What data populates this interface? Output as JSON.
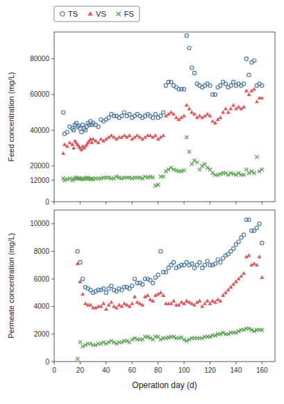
{
  "chart_data": [
    {
      "type": "scatter",
      "ylabel": "Feed concentration (mg/L)",
      "xlim": [
        0,
        170
      ],
      "xticks": [
        0,
        20,
        40,
        60,
        80,
        100,
        120,
        140,
        160
      ],
      "ylim": [
        0,
        95000
      ],
      "yticks": [
        0,
        12000,
        20000,
        40000,
        60000,
        80000
      ],
      "tick_labels": "y",
      "legend": "upper left",
      "series": [
        {
          "name": "TS",
          "marker": "circle",
          "color": "#4e79a7",
          "x": [
            7,
            8,
            10,
            12,
            14,
            15,
            16,
            17,
            18,
            19,
            20,
            21,
            22,
            23,
            24,
            25,
            26,
            27,
            28,
            29,
            30,
            32,
            34,
            36,
            38,
            40,
            42,
            44,
            46,
            48,
            50,
            52,
            54,
            56,
            58,
            60,
            62,
            64,
            66,
            68,
            70,
            72,
            74,
            76,
            78,
            80,
            82,
            84,
            86,
            88,
            90,
            92,
            94,
            96,
            98,
            100,
            102,
            104,
            106,
            108,
            110,
            112,
            114,
            116,
            118,
            120,
            122,
            124,
            126,
            128,
            130,
            132,
            134,
            136,
            138,
            140,
            142,
            144,
            146,
            148,
            150,
            152,
            154,
            156,
            158,
            160
          ],
          "values": [
            50000,
            38000,
            39000,
            42000,
            41000,
            40000,
            43000,
            44000,
            42000,
            42500,
            41000,
            39000,
            43000,
            41000,
            40000,
            42000,
            44000,
            43000,
            45000,
            43000,
            44000,
            43000,
            42000,
            46000,
            45000,
            46000,
            47000,
            49000,
            48000,
            48000,
            47000,
            48000,
            50000,
            48000,
            49000,
            47000,
            48000,
            49000,
            48000,
            47000,
            48000,
            49000,
            48000,
            47000,
            49000,
            47000,
            48000,
            50000,
            65000,
            67000,
            67000,
            65000,
            64000,
            63000,
            63000,
            63000,
            93000,
            86000,
            75000,
            72000,
            66000,
            65000,
            64000,
            65000,
            66000,
            65000,
            60000,
            60000,
            64000,
            65000,
            67000,
            66000,
            64000,
            65000,
            67000,
            65000,
            66000,
            65000,
            66000,
            80000,
            71000,
            78000,
            79000,
            65000,
            66000,
            65000
          ]
        },
        {
          "name": "VS",
          "marker": "triangle",
          "color": "#e15759",
          "x": [
            7,
            8,
            10,
            12,
            14,
            15,
            16,
            17,
            18,
            19,
            20,
            21,
            22,
            23,
            24,
            25,
            26,
            27,
            28,
            29,
            30,
            32,
            34,
            36,
            38,
            40,
            42,
            44,
            46,
            48,
            50,
            52,
            54,
            56,
            58,
            60,
            62,
            64,
            66,
            68,
            70,
            72,
            74,
            76,
            78,
            80,
            82,
            84,
            86,
            88,
            90,
            92,
            94,
            96,
            98,
            100,
            102,
            104,
            106,
            108,
            110,
            112,
            114,
            116,
            118,
            120,
            122,
            124,
            126,
            128,
            130,
            132,
            134,
            136,
            138,
            140,
            142,
            144,
            146,
            148,
            150,
            152,
            154,
            156,
            158,
            160
          ],
          "values": [
            27000,
            32000,
            31000,
            33000,
            32000,
            30000,
            34000,
            33000,
            32000,
            31000,
            30000,
            29000,
            31000,
            30000,
            31000,
            32000,
            33000,
            34000,
            35000,
            33000,
            35000,
            34000,
            33000,
            35000,
            34000,
            35000,
            36000,
            37000,
            36000,
            35000,
            36000,
            36000,
            37000,
            36000,
            37000,
            35000,
            36000,
            37000,
            36000,
            35000,
            36000,
            37000,
            37000,
            36000,
            37000,
            35000,
            36000,
            37000,
            48000,
            49000,
            50000,
            49000,
            47000,
            46000,
            47000,
            48000,
            54000,
            52000,
            50000,
            49000,
            47000,
            48000,
            47000,
            48000,
            49000,
            48000,
            45000,
            44000,
            46000,
            47000,
            50000,
            52000,
            50000,
            52000,
            54000,
            52000,
            53000,
            52000,
            53000,
            62000,
            60000,
            62000,
            63000,
            56000,
            58000,
            58000
          ]
        },
        {
          "name": "FS",
          "marker": "x",
          "color": "#59a14f",
          "x": [
            7,
            8,
            10,
            12,
            14,
            15,
            16,
            17,
            18,
            19,
            20,
            21,
            22,
            23,
            24,
            25,
            26,
            27,
            28,
            29,
            30,
            32,
            34,
            36,
            38,
            40,
            42,
            44,
            46,
            48,
            50,
            52,
            54,
            56,
            58,
            60,
            62,
            64,
            66,
            68,
            70,
            72,
            74,
            76,
            78,
            80,
            82,
            84,
            86,
            88,
            90,
            92,
            94,
            96,
            98,
            100,
            102,
            104,
            106,
            108,
            110,
            112,
            114,
            116,
            118,
            120,
            122,
            124,
            126,
            128,
            130,
            132,
            134,
            136,
            138,
            140,
            142,
            144,
            146,
            148,
            150,
            152,
            154,
            156,
            158,
            160
          ],
          "values": [
            13000,
            12000,
            12500,
            13000,
            12000,
            12500,
            13000,
            13500,
            13000,
            13000,
            13000,
            12500,
            13000,
            12500,
            13000,
            13500,
            13000,
            13000,
            12500,
            13000,
            12500,
            13000,
            13000,
            13000,
            13500,
            13500,
            13500,
            13000,
            13000,
            14000,
            13500,
            13000,
            13500,
            13500,
            13500,
            13000,
            13500,
            13500,
            13500,
            13000,
            14000,
            13500,
            14000,
            13500,
            9000,
            9500,
            14000,
            14000,
            17000,
            18000,
            19000,
            18000,
            17500,
            17000,
            17000,
            17500,
            36000,
            28000,
            21000,
            23000,
            22000,
            18000,
            20000,
            21000,
            19000,
            18000,
            16000,
            15000,
            15000,
            15500,
            16000,
            16000,
            15000,
            16000,
            15500,
            15000,
            16000,
            15000,
            15000,
            18000,
            16000,
            17000,
            16000,
            25000,
            17000,
            18000
          ]
        }
      ]
    },
    {
      "type": "scatter",
      "xlabel": "Operation day (d)",
      "ylabel": "Permeate concentration (mg/L)",
      "xlim": [
        0,
        170
      ],
      "xticks": [
        0,
        20,
        40,
        60,
        80,
        100,
        120,
        140,
        160
      ],
      "ylim": [
        0,
        11000
      ],
      "yticks": [
        0,
        2000,
        4000,
        6000,
        8000,
        10000
      ],
      "series": [
        {
          "marker": "circle",
          "color": "#4e79a7",
          "x": [
            18,
            20,
            22,
            24,
            26,
            28,
            30,
            32,
            34,
            36,
            38,
            40,
            42,
            44,
            46,
            48,
            50,
            52,
            54,
            56,
            58,
            60,
            62,
            64,
            66,
            68,
            70,
            72,
            74,
            76,
            78,
            80,
            82,
            84,
            86,
            88,
            90,
            92,
            94,
            96,
            98,
            100,
            102,
            104,
            106,
            108,
            110,
            112,
            114,
            116,
            118,
            120,
            122,
            124,
            126,
            128,
            130,
            132,
            134,
            136,
            138,
            140,
            142,
            144,
            146,
            148,
            150,
            152,
            154,
            156,
            158,
            160
          ],
          "values": [
            8000,
            7200,
            6000,
            5400,
            5300,
            5200,
            5000,
            5100,
            5200,
            5200,
            5300,
            5000,
            5300,
            5500,
            5200,
            5100,
            5300,
            5200,
            5400,
            5400,
            5300,
            5500,
            6000,
            5700,
            5700,
            5600,
            6000,
            6000,
            5900,
            5700,
            6100,
            6300,
            8000,
            6500,
            6500,
            6800,
            7000,
            7200,
            6800,
            6900,
            7000,
            7000,
            7200,
            7000,
            7100,
            6800,
            7000,
            7200,
            6800,
            7000,
            7300,
            7000,
            7000,
            7100,
            7400,
            7200,
            7500,
            7700,
            7800,
            8000,
            8200,
            8500,
            8700,
            9000,
            9200,
            10300,
            10300,
            9500,
            9500,
            9700,
            10000,
            8600
          ]
        },
        {
          "marker": "triangle",
          "color": "#e15759",
          "x": [
            18,
            20,
            22,
            24,
            26,
            28,
            30,
            32,
            34,
            36,
            38,
            40,
            42,
            44,
            46,
            48,
            50,
            52,
            54,
            56,
            58,
            60,
            62,
            64,
            66,
            68,
            70,
            72,
            74,
            76,
            78,
            80,
            82,
            84,
            86,
            88,
            90,
            92,
            94,
            96,
            98,
            100,
            102,
            104,
            106,
            108,
            110,
            112,
            114,
            116,
            118,
            120,
            122,
            124,
            126,
            128,
            130,
            132,
            134,
            136,
            138,
            140,
            142,
            144,
            146,
            148,
            150,
            152,
            154,
            156,
            158,
            160
          ],
          "values": [
            7100,
            5800,
            4900,
            4200,
            4100,
            4100,
            3900,
            3900,
            4000,
            4000,
            4200,
            3800,
            4100,
            4300,
            4000,
            3900,
            4100,
            4000,
            4200,
            4100,
            4000,
            4200,
            4700,
            4300,
            4200,
            4100,
            4700,
            4800,
            4500,
            4400,
            4800,
            4900,
            5000,
            4800,
            4200,
            4200,
            4200,
            4400,
            4100,
            4100,
            4300,
            4200,
            4400,
            4300,
            4200,
            4100,
            4300,
            4400,
            4000,
            4200,
            4400,
            4200,
            4400,
            4300,
            4500,
            4400,
            4800,
            5000,
            5200,
            5400,
            5600,
            5800,
            6000,
            6200,
            6400,
            7600,
            7700,
            7000,
            7100,
            7000,
            7600,
            6100
          ]
        },
        {
          "marker": "x",
          "color": "#59a14f",
          "x": [
            18,
            20,
            22,
            24,
            26,
            28,
            30,
            32,
            34,
            36,
            38,
            40,
            42,
            44,
            46,
            48,
            50,
            52,
            54,
            56,
            58,
            60,
            62,
            64,
            66,
            68,
            70,
            72,
            74,
            76,
            78,
            80,
            82,
            84,
            86,
            88,
            90,
            92,
            94,
            96,
            98,
            100,
            102,
            104,
            106,
            108,
            110,
            112,
            114,
            116,
            118,
            120,
            122,
            124,
            126,
            128,
            130,
            132,
            134,
            136,
            138,
            140,
            142,
            144,
            146,
            148,
            150,
            152,
            154,
            156,
            158,
            160
          ],
          "values": [
            200,
            1400,
            1100,
            1200,
            1300,
            1300,
            1200,
            1200,
            1300,
            1300,
            1400,
            1300,
            1400,
            1500,
            1400,
            1300,
            1400,
            1400,
            1500,
            1500,
            1400,
            1600,
            1700,
            1600,
            1600,
            1600,
            1800,
            1800,
            1700,
            1600,
            1800,
            1800,
            1600,
            1700,
            1700,
            1750,
            1800,
            1800,
            1700,
            1700,
            1750,
            1600,
            1500,
            1600,
            1700,
            1700,
            1700,
            1700,
            1700,
            1800,
            1800,
            1800,
            1900,
            1900,
            2000,
            2000,
            2100,
            2000,
            2000,
            2100,
            2100,
            2100,
            2200,
            2300,
            2300,
            2400,
            2400,
            2300,
            2200,
            2300,
            2300,
            2300
          ]
        }
      ]
    }
  ]
}
